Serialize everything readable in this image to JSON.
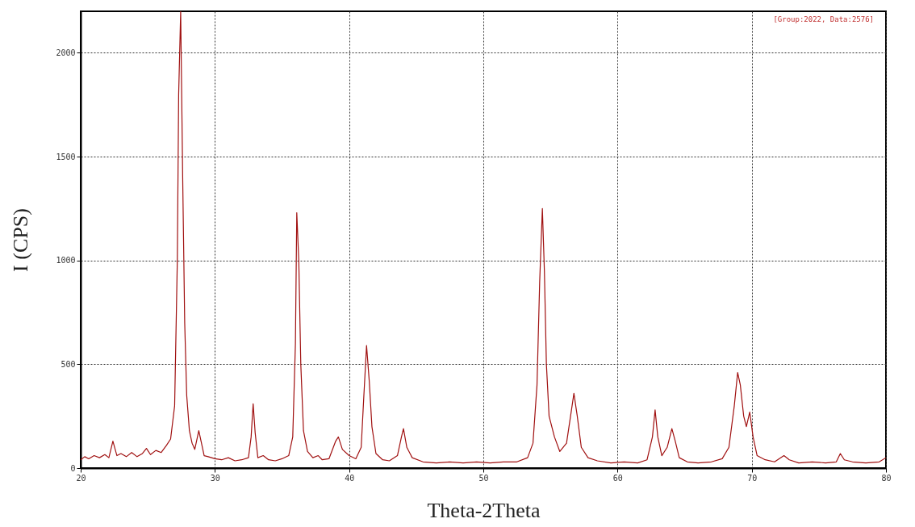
{
  "chart_data": {
    "type": "line",
    "xlabel": "Theta-2Theta",
    "ylabel": "I (CPS)",
    "annotations": [
      "[Group:2022, Data:2576]"
    ],
    "xlim": [
      20,
      80
    ],
    "ylim": [
      0,
      2200
    ],
    "xticks": [
      20,
      30,
      40,
      50,
      60,
      70,
      80
    ],
    "yticks": [
      0,
      500,
      1000,
      1500,
      2000
    ],
    "grid": true,
    "x": [
      20,
      20.3,
      20.6,
      21,
      21.4,
      21.8,
      22.1,
      22.4,
      22.7,
      23,
      23.4,
      23.8,
      24.2,
      24.6,
      24.9,
      25.2,
      25.6,
      26,
      26.4,
      26.7,
      27.0,
      27.2,
      27.3,
      27.45,
      27.6,
      27.75,
      27.9,
      28.1,
      28.3,
      28.5,
      28.8,
      29.0,
      29.2,
      29.5,
      30,
      30.5,
      31,
      31.5,
      32,
      32.5,
      32.7,
      32.85,
      33.0,
      33.2,
      33.6,
      34,
      34.5,
      35,
      35.5,
      35.8,
      36.0,
      36.1,
      36.25,
      36.4,
      36.6,
      36.9,
      37.3,
      37.7,
      38,
      38.5,
      39.0,
      39.2,
      39.5,
      40,
      40.5,
      40.9,
      41.1,
      41.3,
      41.5,
      41.7,
      42,
      42.5,
      43,
      43.6,
      43.9,
      44.05,
      44.3,
      44.7,
      45.5,
      46.5,
      47.5,
      48.5,
      49.5,
      50.5,
      51.5,
      52.5,
      53.3,
      53.7,
      54.0,
      54.2,
      54.4,
      54.55,
      54.7,
      54.9,
      55.3,
      55.7,
      56.2,
      56.5,
      56.75,
      57.0,
      57.3,
      57.8,
      58.5,
      59.5,
      60.5,
      61.5,
      62.2,
      62.6,
      62.8,
      63.0,
      63.3,
      63.7,
      64.05,
      64.3,
      64.6,
      65.2,
      66,
      67,
      67.8,
      68.3,
      68.7,
      68.95,
      69.15,
      69.4,
      69.6,
      69.85,
      70.1,
      70.4,
      71,
      71.7,
      72.4,
      72.8,
      73.5,
      74.5,
      75.5,
      76.3,
      76.6,
      76.9,
      77.5,
      78.5,
      79.5,
      80
    ],
    "series": [
      {
        "color": "#a01010",
        "values": [
          40,
          55,
          45,
          60,
          50,
          65,
          50,
          130,
          60,
          70,
          55,
          75,
          55,
          70,
          95,
          65,
          85,
          75,
          110,
          140,
          300,
          1000,
          1800,
          2200,
          1400,
          700,
          350,
          180,
          120,
          90,
          180,
          120,
          60,
          55,
          45,
          40,
          50,
          35,
          40,
          50,
          150,
          310,
          170,
          50,
          60,
          40,
          35,
          45,
          60,
          150,
          600,
          1230,
          1000,
          500,
          180,
          80,
          50,
          60,
          40,
          45,
          130,
          150,
          90,
          60,
          45,
          100,
          350,
          590,
          420,
          200,
          70,
          40,
          35,
          60,
          150,
          190,
          100,
          50,
          30,
          25,
          30,
          25,
          30,
          25,
          30,
          30,
          50,
          120,
          400,
          900,
          1250,
          950,
          500,
          250,
          150,
          80,
          120,
          250,
          360,
          250,
          100,
          50,
          35,
          25,
          30,
          25,
          40,
          150,
          280,
          150,
          60,
          100,
          190,
          130,
          50,
          30,
          25,
          30,
          45,
          100,
          300,
          460,
          400,
          250,
          200,
          270,
          150,
          60,
          40,
          30,
          60,
          40,
          25,
          30,
          25,
          30,
          70,
          40,
          30,
          25,
          30,
          50
        ]
      }
    ]
  }
}
